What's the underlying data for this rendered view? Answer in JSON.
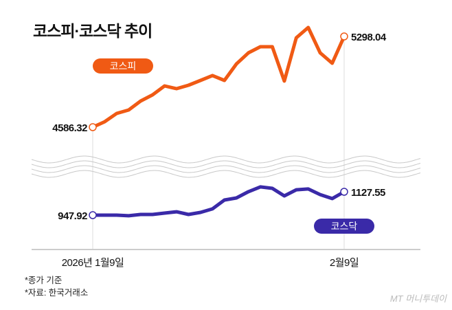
{
  "title": "코스피·코스닥 추이",
  "notes": [
    "*종가 기준",
    "*자료: 한국거래소"
  ],
  "logo": "MT 머니투데이",
  "chart_data": {
    "type": "line",
    "title": "코스피·코스닥 추이",
    "x_tick_labels": [
      "2026년 1월9일",
      "2월9일"
    ],
    "grid": false,
    "broken_y_axis": true,
    "series": [
      {
        "name": "코스피",
        "color": "#f05a14",
        "values": [
          4586.32,
          4629,
          4694,
          4721,
          4791,
          4840,
          4910,
          4888,
          4915,
          4953,
          4991,
          4953,
          5082,
          5169,
          5217,
          5217,
          4948,
          5287,
          5368,
          5169,
          5088,
          5298.04
        ],
        "start_label": "4586.32",
        "end_label": "5298.04",
        "ylim": [
          4400,
          5450
        ]
      },
      {
        "name": "코스닥",
        "color": "#3a2aa8",
        "values": [
          947.92,
          948,
          948,
          943,
          953,
          953,
          964,
          974,
          953,
          969,
          996,
          1064,
          1080,
          1128,
          1165,
          1154,
          1096,
          1143,
          1149,
          1106,
          1075,
          1127.55
        ],
        "start_label": "947.92",
        "end_label": "1127.55",
        "ylim": [
          850,
          1200
        ]
      }
    ]
  }
}
